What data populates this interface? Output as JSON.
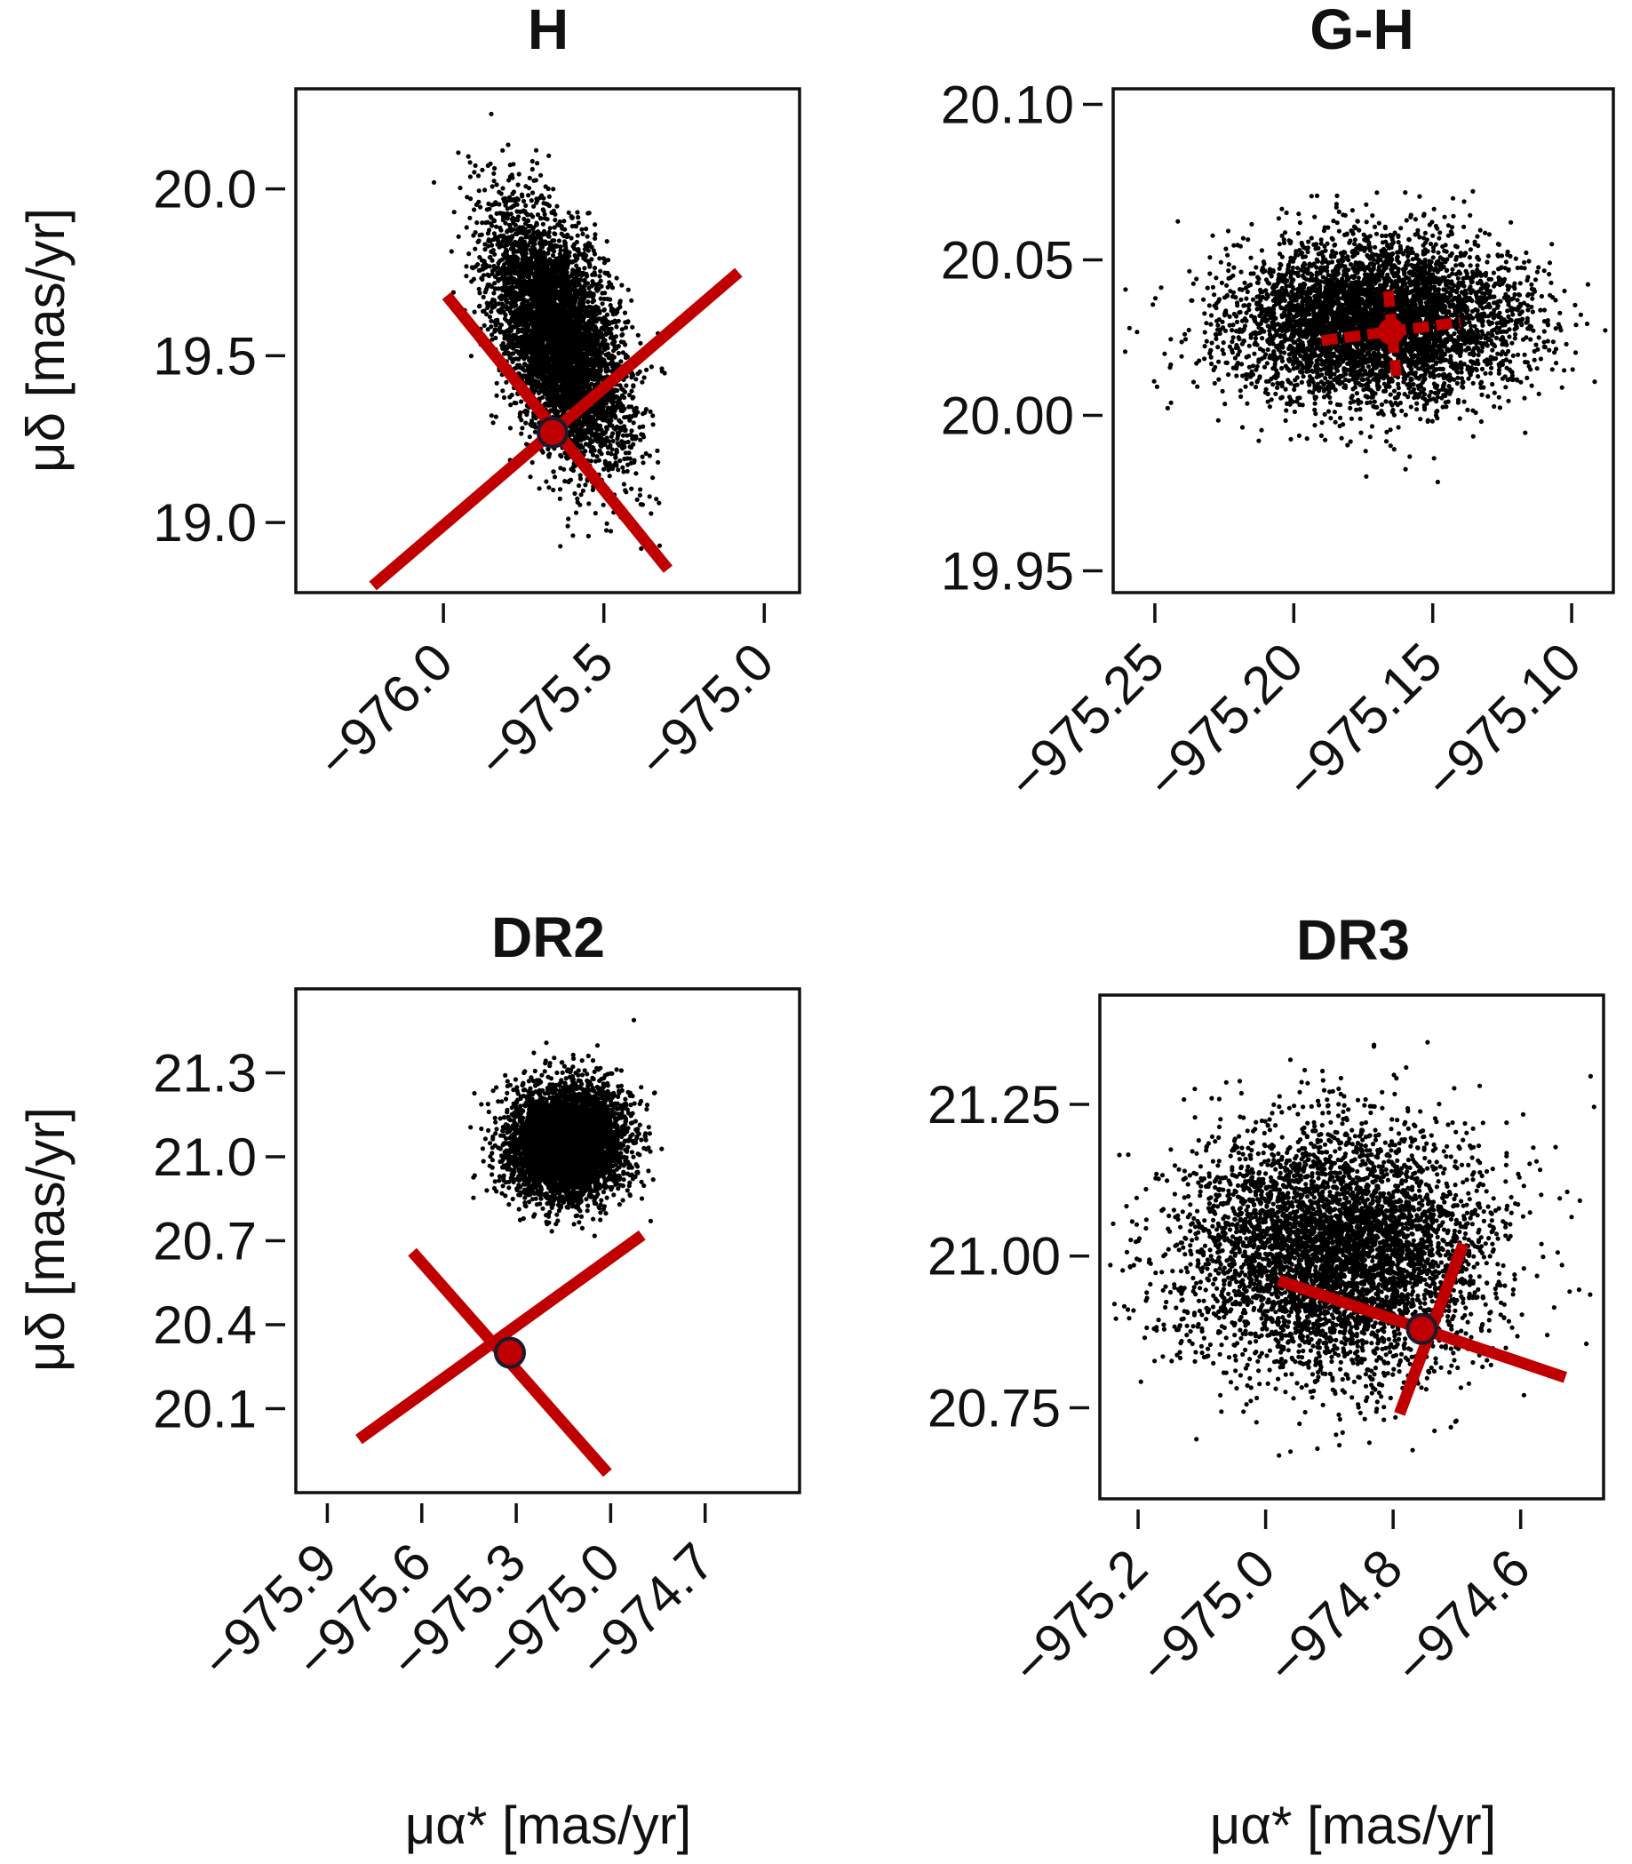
{
  "chart_data": [
    {
      "type": "scatter",
      "title": "H",
      "xlabel": "",
      "ylabel": "μδ [mas/yr]",
      "xlim": [
        -976.46,
        -974.89
      ],
      "ylim": [
        18.79,
        20.3
      ],
      "xticks": [
        -976.0,
        -975.5,
        -975.0
      ],
      "xtick_labels": [
        "−976.0",
        "−975.5",
        "−975.0"
      ],
      "yticks": [
        19.0,
        19.5,
        20.0
      ],
      "ytick_labels": [
        "19.0",
        "19.5",
        "20.0"
      ],
      "cloud": {
        "n": 5000,
        "center": [
          -975.64,
          19.55
        ],
        "sd": [
          0.105,
          0.19
        ],
        "corr": -0.55
      },
      "estimate": {
        "x": -975.66,
        "y": 19.27
      },
      "cross_arms": [
        {
          "from": [
            -976.22,
            18.81
          ],
          "to": [
            -975.08,
            19.75
          ]
        },
        {
          "from": [
            -975.99,
            19.68
          ],
          "to": [
            -975.3,
            18.86
          ]
        }
      ],
      "cross_style": "solid"
    },
    {
      "type": "scatter",
      "title": "G-H",
      "xlabel": "",
      "ylabel": "",
      "xlim": [
        -975.265,
        -975.085
      ],
      "ylim": [
        19.943,
        20.105
      ],
      "xticks": [
        -975.25,
        -975.2,
        -975.15,
        -975.1
      ],
      "xtick_labels": [
        "−975.25",
        "−975.20",
        "−975.15",
        "−975.10"
      ],
      "yticks": [
        19.95,
        20.0,
        20.05,
        20.1
      ],
      "ytick_labels": [
        "19.95",
        "20.00",
        "20.05",
        "20.10"
      ],
      "cloud": {
        "n": 5000,
        "center": [
          -975.17,
          20.03
        ],
        "sd": [
          0.026,
          0.013
        ],
        "corr": 0.0
      },
      "estimate": {
        "x": -975.165,
        "y": 20.027
      },
      "cross_arms": [
        {
          "from": [
            -975.19,
            20.024
          ],
          "to": [
            -975.14,
            20.03
          ]
        },
        {
          "from": [
            -975.166,
            20.04
          ],
          "to": [
            -975.163,
            20.012
          ]
        }
      ],
      "cross_style": "dashed"
    },
    {
      "type": "scatter",
      "title": "DR2",
      "xlabel": "μα* [mas/yr]",
      "ylabel": "μδ [mas/yr]",
      "xlim": [
        -976.0,
        -974.4
      ],
      "ylim": [
        19.8,
        21.6
      ],
      "xticks": [
        -975.9,
        -975.6,
        -975.3,
        -975.0,
        -974.7
      ],
      "xtick_labels": [
        "−975.9",
        "−975.6",
        "−975.3",
        "−975.0",
        "−974.7"
      ],
      "yticks": [
        20.1,
        20.4,
        20.7,
        21.0,
        21.3
      ],
      "ytick_labels": [
        "20.1",
        "20.4",
        "20.7",
        "21.0",
        "21.3"
      ],
      "cloud": {
        "n": 5000,
        "center": [
          -975.14,
          21.05
        ],
        "sd": [
          0.09,
          0.1
        ],
        "corr": 0.0
      },
      "estimate": {
        "x": -975.32,
        "y": 20.3
      },
      "cross_arms": [
        {
          "from": [
            -975.8,
            19.99
          ],
          "to": [
            -974.9,
            20.72
          ]
        },
        {
          "from": [
            -975.63,
            20.66
          ],
          "to": [
            -975.01,
            19.87
          ]
        }
      ],
      "cross_style": "solid"
    },
    {
      "type": "scatter",
      "title": "DR3",
      "xlabel": "μα* [mas/yr]",
      "ylabel": "",
      "xlim": [
        -975.26,
        -974.47
      ],
      "ylim": [
        20.6,
        21.43
      ],
      "xticks": [
        -975.2,
        -975.0,
        -974.8,
        -974.6
      ],
      "xtick_labels": [
        "−975.2",
        "−975.0",
        "−974.8",
        "−974.6"
      ],
      "yticks": [
        20.75,
        21.0,
        21.25
      ],
      "ytick_labels": [
        "20.75",
        "21.00",
        "21.25"
      ],
      "cloud": {
        "n": 5000,
        "center": [
          -974.89,
          21.01
        ],
        "sd": [
          0.12,
          0.1
        ],
        "corr": 0.0
      },
      "estimate": {
        "x": -974.755,
        "y": 20.88
      },
      "cross_arms": [
        {
          "from": [
            -974.98,
            20.96
          ],
          "to": [
            -974.53,
            20.8
          ]
        },
        {
          "from": [
            -974.79,
            20.74
          ],
          "to": [
            -974.69,
            21.02
          ]
        }
      ],
      "cross_style": "solid"
    }
  ],
  "colors": {
    "points": "#000000",
    "cross": "#c00000",
    "marker_fill": "#c00000",
    "marker_edge": "#1a1a2e"
  }
}
